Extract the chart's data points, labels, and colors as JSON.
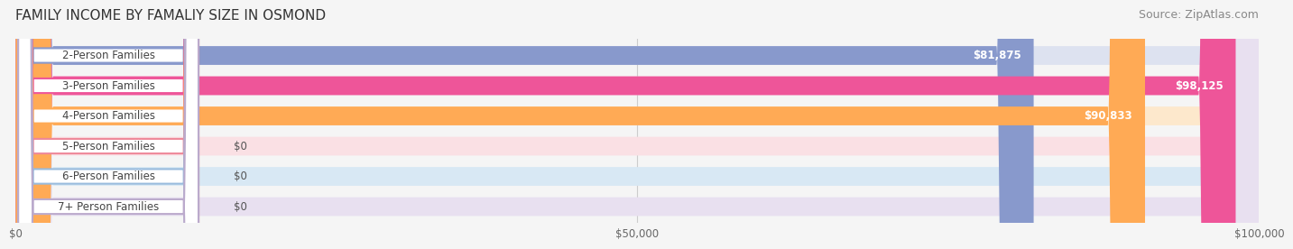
{
  "title": "FAMILY INCOME BY FAMALIY SIZE IN OSMOND",
  "source": "Source: ZipAtlas.com",
  "categories": [
    "2-Person Families",
    "3-Person Families",
    "4-Person Families",
    "5-Person Families",
    "6-Person Families",
    "7+ Person Families"
  ],
  "values": [
    81875,
    98125,
    90833,
    0,
    0,
    0
  ],
  "bar_colors": [
    "#8899cc",
    "#ee5599",
    "#ffaa55",
    "#ee8899",
    "#99bbdd",
    "#bbaacc"
  ],
  "bar_bg_colors": [
    "#dde2f0",
    "#f9d0e0",
    "#fde8cc",
    "#fae0e4",
    "#d8e8f4",
    "#e8e0f0"
  ],
  "label_colors": [
    "#8899cc",
    "#ee5599",
    "#ffaa55",
    "#ee8899",
    "#99bbdd",
    "#bbaacc"
  ],
  "value_labels": [
    "$81,875",
    "$98,125",
    "$90,833",
    "$0",
    "$0",
    "$0"
  ],
  "xlim": [
    0,
    100000
  ],
  "xticks": [
    0,
    50000,
    100000
  ],
  "xtick_labels": [
    "$0",
    "$50,000",
    "$100,000"
  ],
  "title_fontsize": 11,
  "source_fontsize": 9,
  "label_fontsize": 8.5,
  "value_fontsize": 8.5,
  "background_color": "#f5f5f5",
  "bar_bg_alpha": 1.0,
  "bar_height": 0.62
}
